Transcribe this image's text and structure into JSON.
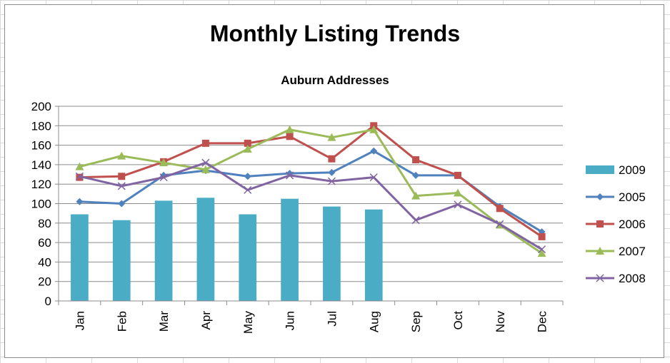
{
  "chart_data": {
    "type": "bar+line",
    "title": "Monthly Listing Trends",
    "subtitle": "Auburn Addresses",
    "categories": [
      "Jan",
      "Feb",
      "Mar",
      "Apr",
      "May",
      "Jun",
      "Jul",
      "Aug",
      "Sep",
      "Oct",
      "Nov",
      "Dec"
    ],
    "ylim": [
      0,
      200
    ],
    "yticks": [
      "0",
      "20",
      "40",
      "60",
      "80",
      "100",
      "120",
      "140",
      "160",
      "180",
      "200"
    ],
    "grid": true,
    "legend_position": "right",
    "series": [
      {
        "name": "2009",
        "kind": "bar",
        "color": "#4BACC6",
        "marker": "none",
        "values": [
          89,
          83,
          103,
          106,
          89,
          105,
          97,
          94,
          null,
          null,
          null,
          null
        ]
      },
      {
        "name": "2005",
        "kind": "line",
        "color": "#4F81BD",
        "marker": "diamond",
        "values": [
          102,
          100,
          129,
          134,
          128,
          131,
          132,
          154,
          129,
          129,
          97,
          71
        ]
      },
      {
        "name": "2006",
        "kind": "line",
        "color": "#C0504D",
        "marker": "square",
        "values": [
          127,
          128,
          143,
          162,
          162,
          169,
          146,
          180,
          145,
          129,
          95,
          66
        ]
      },
      {
        "name": "2007",
        "kind": "line",
        "color": "#9BBB59",
        "marker": "triangle",
        "values": [
          138,
          149,
          142,
          135,
          156,
          176,
          168,
          176,
          108,
          111,
          78,
          49
        ]
      },
      {
        "name": "2008",
        "kind": "line",
        "color": "#8064A2",
        "marker": "x",
        "values": [
          128,
          118,
          127,
          142,
          114,
          129,
          123,
          127,
          83,
          99,
          79,
          53
        ]
      }
    ]
  }
}
